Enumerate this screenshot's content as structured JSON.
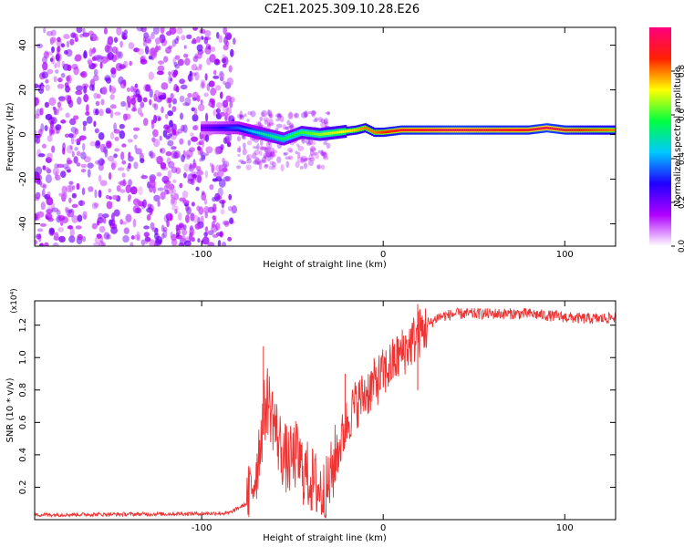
{
  "title": "C2E1.2025.309.10.28.E26",
  "chart_data": [
    {
      "type": "heatmap",
      "xlabel": "Height of straight line (km)",
      "ylabel": "Frequency (Hz)",
      "xlim": [
        -192,
        128
      ],
      "ylim": [
        -50,
        48
      ],
      "xticks": [
        -100,
        0,
        100
      ],
      "yticks": [
        -40,
        -20,
        0,
        20,
        40
      ],
      "xtick_labels": [
        "-100",
        "0",
        "100"
      ],
      "ytick_labels": [
        "-40",
        "-20",
        "0",
        "20",
        "40"
      ],
      "colorbar": {
        "label": "Normalized spectral amplitude",
        "range": [
          0,
          1
        ],
        "ticks": [
          0,
          0.2,
          0.4,
          0.6,
          0.8
        ],
        "tick_labels": [
          "0.0",
          "0.2",
          "0.4",
          "0.6",
          "0.8"
        ],
        "colors": [
          "#ffffff",
          "#b000ff",
          "#2000ff",
          "#00c8ff",
          "#00ff40",
          "#ffff00",
          "#ff2000",
          "#ff0080"
        ]
      },
      "ridge": {
        "x": [
          -100,
          -80,
          -65,
          -55,
          -45,
          -35,
          -25,
          -15,
          -10,
          -5,
          0,
          10,
          20,
          40,
          60,
          80,
          90,
          100,
          110,
          128
        ],
        "frequency": [
          3,
          3,
          0,
          -2,
          1,
          0,
          1,
          2,
          3,
          1,
          1,
          2,
          2,
          2,
          2,
          2,
          3,
          2,
          2,
          2
        ],
        "amplitude": [
          0.2,
          0.35,
          0.5,
          0.55,
          0.6,
          0.65,
          0.7,
          0.75,
          0.8,
          0.8,
          0.85,
          0.9,
          0.9,
          0.95,
          0.9,
          0.9,
          0.95,
          0.9,
          0.85,
          0.8
        ]
      }
    },
    {
      "type": "line",
      "xlabel": "Height of straight line (km)",
      "ylabel": "SNR (10 * v/v)",
      "y_multiplier": "(x10⁴)",
      "xlim": [
        -192,
        128
      ],
      "ylim": [
        0,
        1.35
      ],
      "xticks": [
        -100,
        0,
        100
      ],
      "yticks": [
        0.2,
        0.4,
        0.6,
        0.8,
        1.0,
        1.2
      ],
      "xtick_labels": [
        "-100",
        "0",
        "100"
      ],
      "ytick_labels": [
        "0.2",
        "0.4",
        "0.6",
        "0.8",
        "1.0",
        "1.2"
      ],
      "line_color": "#ee3333",
      "series": [
        {
          "name": "SNR",
          "x": [
            -192,
            -120,
            -85,
            -75,
            -70,
            -67,
            -64,
            -61,
            -58,
            -55,
            -52,
            -48,
            -44,
            -40,
            -36,
            -32,
            -28,
            -26,
            -24,
            -20,
            -16,
            -12,
            -8,
            -4,
            0,
            4,
            8,
            12,
            16,
            20,
            25,
            30,
            40,
            60,
            80,
            100,
            110,
            120,
            128
          ],
          "y": [
            0.03,
            0.035,
            0.04,
            0.1,
            0.3,
            0.55,
            0.75,
            0.65,
            0.5,
            0.4,
            0.35,
            0.4,
            0.3,
            0.25,
            0.2,
            0.15,
            0.3,
            0.4,
            0.45,
            0.6,
            0.7,
            0.75,
            0.8,
            0.85,
            0.9,
            0.95,
            1.0,
            1.05,
            1.1,
            1.15,
            1.2,
            1.25,
            1.27,
            1.27,
            1.27,
            1.25,
            1.24,
            1.24,
            1.25
          ]
        }
      ],
      "peaks": [
        {
          "x": -66,
          "y": 1.07
        },
        {
          "x": -21,
          "y": 0.9
        },
        {
          "x": 19,
          "y": 1.33
        }
      ]
    }
  ]
}
